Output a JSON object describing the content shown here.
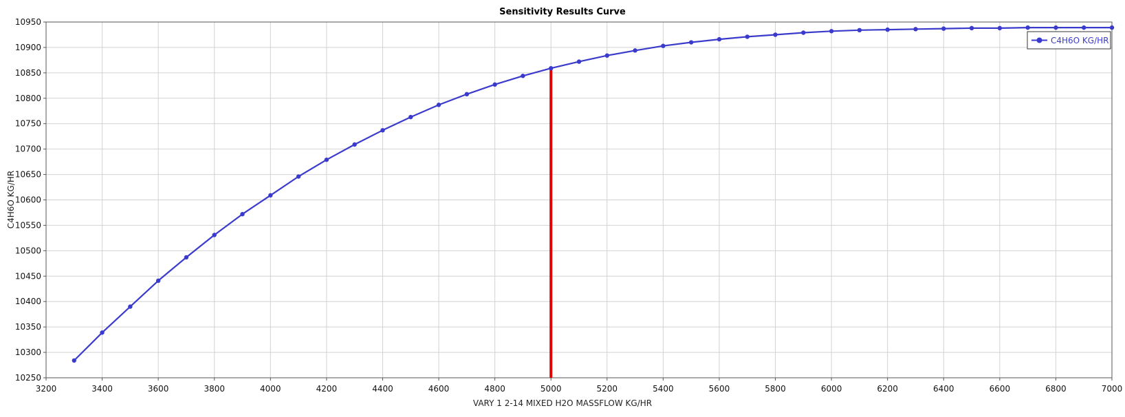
{
  "colors": {
    "series": "#3a3acc",
    "marker_line": "#e00000",
    "grid": "#d2d2d2",
    "axis": "#555555"
  },
  "chart_data": {
    "type": "line",
    "title": "Sensitivity Results Curve",
    "xlabel": "VARY   1 2-14 MIXED H2O MASSFLOW KG/HR",
    "ylabel": "C4H6O KG/HR",
    "xlim": [
      3200,
      7000
    ],
    "ylim": [
      10250,
      10950
    ],
    "x_ticks": [
      3200,
      3400,
      3600,
      3800,
      4000,
      4200,
      4400,
      4600,
      4800,
      5000,
      5200,
      5400,
      5600,
      5800,
      6000,
      6200,
      6400,
      6600,
      6800,
      7000
    ],
    "y_ticks": [
      10250,
      10300,
      10350,
      10400,
      10450,
      10500,
      10550,
      10600,
      10650,
      10700,
      10750,
      10800,
      10850,
      10900,
      10950
    ],
    "grid": true,
    "legend_position": "top-right",
    "series": [
      {
        "name": "C4H6O KG/HR",
        "marker": "star",
        "x": [
          3300,
          3400,
          3500,
          3600,
          3700,
          3800,
          3900,
          4000,
          4100,
          4200,
          4300,
          4400,
          4500,
          4600,
          4700,
          4800,
          4900,
          5000,
          5100,
          5200,
          5300,
          5400,
          5500,
          5600,
          5700,
          5800,
          5900,
          6000,
          6100,
          6200,
          6300,
          6400,
          6500,
          6600,
          6700,
          6800,
          6900,
          7000
        ],
        "y": [
          10284,
          10339,
          10390,
          10441,
          10487,
          10531,
          10572,
          10609,
          10646,
          10679,
          10709,
          10737,
          10763,
          10787,
          10808,
          10827,
          10844,
          10859,
          10872,
          10884,
          10894,
          10903,
          10910,
          10916,
          10921,
          10925,
          10929,
          10932,
          10934,
          10935,
          10936,
          10937,
          10938,
          10938,
          10939,
          10939,
          10939,
          10939
        ]
      }
    ],
    "annotations": [
      {
        "type": "vertical-line",
        "x": 5000,
        "y_from": 10250,
        "y_to": 10859
      }
    ]
  }
}
